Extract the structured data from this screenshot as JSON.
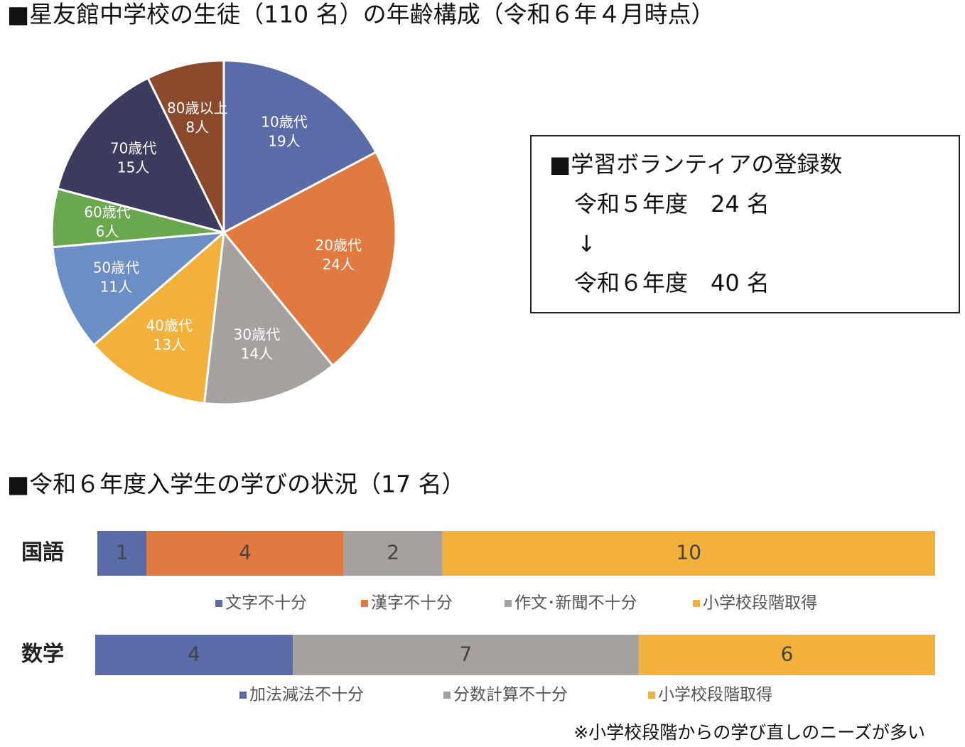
{
  "chart_data": [
    {
      "type": "pie",
      "title": "■星友館中学校の生徒（110 名）の年齢構成（令和６年４月時点）",
      "categories": [
        "10歳代",
        "20歳代",
        "30歳代",
        "40歳代",
        "50歳代",
        "60歳代",
        "70歳代",
        "80歳以上"
      ],
      "values": [
        19,
        24,
        14,
        13,
        11,
        6,
        15,
        8
      ],
      "value_labels": [
        "19人",
        "24人",
        "14人",
        "13人",
        "11人",
        "6人",
        "15人",
        "8人"
      ],
      "colors": [
        "#5a6ca8",
        "#e07a40",
        "#a6a19f",
        "#f2b03c",
        "#6b8fc4",
        "#6aa84f",
        "#3b3b5e",
        "#8a4a2b"
      ]
    },
    {
      "type": "stacked-bar",
      "title": "■令和６年度入学生の学びの状況（17 名）",
      "categories": [
        "国語"
      ],
      "series": [
        {
          "name": "文字不十分",
          "color": "#5a6ca8",
          "values": [
            1
          ]
        },
        {
          "name": "漢字不十分",
          "color": "#e07a40",
          "values": [
            4
          ]
        },
        {
          "name": "作文･新聞不十分",
          "color": "#a6a19f",
          "values": [
            2
          ]
        },
        {
          "name": "小学校段階取得",
          "color": "#f2b03c",
          "values": [
            10
          ]
        }
      ]
    },
    {
      "type": "stacked-bar",
      "categories": [
        "数学"
      ],
      "series": [
        {
          "name": "加法減法不十分",
          "color": "#5a6ca8",
          "values": [
            4
          ]
        },
        {
          "name": "分数計算不十分",
          "color": "#a6a19f",
          "values": [
            7
          ]
        },
        {
          "name": "小学校段階取得",
          "color": "#f2b03c",
          "values": [
            6
          ]
        }
      ]
    }
  ],
  "box": {
    "title": "■学習ボランティアの登録数",
    "lines": [
      "令和５年度　24 名",
      "↓",
      "令和６年度　40 名"
    ]
  },
  "note": "※小学校段階からの学び直しのニーズが多い"
}
